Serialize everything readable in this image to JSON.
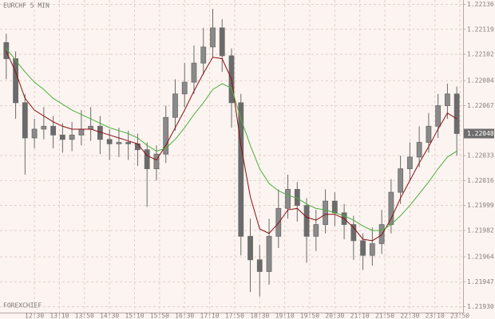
{
  "chart_data": {
    "type": "candlestick",
    "title": "EURCHF 5 MIN",
    "watermark": "FOREXCHIEF",
    "x": [
      705,
      720,
      735,
      750,
      765,
      780,
      795,
      810,
      825,
      840,
      855,
      870,
      885,
      900,
      915,
      930,
      945,
      960,
      975,
      990,
      1005,
      1020,
      1035,
      1050,
      1065,
      1080,
      1095,
      1110,
      1125,
      1140,
      1155,
      1170,
      1185,
      1200,
      1215,
      1230,
      1245,
      1260,
      1275,
      1290,
      1305,
      1320,
      1335,
      1350,
      1365,
      1380,
      1395,
      1410,
      1425
    ],
    "open": [
      1.2211,
      1.22099,
      1.22069,
      1.22045,
      1.22051,
      1.22053,
      1.22047,
      1.22044,
      1.22047,
      1.22051,
      1.22053,
      1.22044,
      1.22041,
      1.22042,
      1.22041,
      1.22037,
      1.22024,
      1.22034,
      1.22059,
      1.22075,
      1.22083,
      1.22096,
      1.22107,
      1.2212,
      1.22101,
      1.22069,
      1.21978,
      1.21962,
      1.21954,
      1.21978,
      1.21997,
      1.2201,
      1.21999,
      1.21978,
      1.21986,
      1.22002,
      1.21994,
      1.21986,
      1.21975,
      1.21965,
      1.21973,
      1.21986,
      1.22008,
      1.22024,
      1.22032,
      1.22042,
      1.22053,
      1.22067,
      1.22075
    ],
    "high": [
      1.22116,
      1.22104,
      1.22075,
      1.22058,
      1.22066,
      1.2206,
      1.22055,
      1.22056,
      1.22064,
      1.22066,
      1.2206,
      1.22051,
      1.22052,
      1.2205,
      1.22048,
      1.22042,
      1.2204,
      1.22067,
      1.22085,
      1.22096,
      1.22108,
      1.2212,
      1.22133,
      1.22126,
      1.22106,
      1.22075,
      1.2199,
      1.21972,
      1.2199,
      1.2201,
      1.2202,
      1.22015,
      1.22004,
      1.21996,
      1.2201,
      1.22008,
      1.22,
      1.21992,
      1.2198,
      1.21984,
      1.21996,
      1.22017,
      1.22033,
      1.22042,
      1.22053,
      1.22062,
      1.22075,
      1.22082,
      1.2208
    ],
    "low": [
      1.22085,
      1.22058,
      1.2202,
      1.22038,
      1.22044,
      1.22038,
      1.22035,
      1.22036,
      1.2204,
      1.22043,
      1.22034,
      1.2203,
      1.22032,
      1.2203,
      1.22026,
      1.21998,
      1.22016,
      1.22028,
      1.2205,
      1.22066,
      1.22075,
      1.22088,
      1.221,
      1.2209,
      1.22052,
      1.21965,
      1.2194,
      1.21937,
      1.21945,
      1.2197,
      1.2199,
      1.21988,
      1.2196,
      1.21968,
      1.2198,
      1.21985,
      1.21976,
      1.21962,
      1.21955,
      1.21958,
      1.21966,
      1.2198,
      1.22,
      1.22016,
      1.22025,
      1.22035,
      1.22045,
      1.22058,
      1.22033
    ],
    "close": [
      1.22099,
      1.22069,
      1.22045,
      1.22051,
      1.22053,
      1.22047,
      1.22044,
      1.22047,
      1.22051,
      1.22053,
      1.22044,
      1.22041,
      1.22042,
      1.22041,
      1.22037,
      1.22024,
      1.22034,
      1.22059,
      1.22075,
      1.22083,
      1.22096,
      1.22107,
      1.2212,
      1.22101,
      1.22069,
      1.21978,
      1.21962,
      1.21954,
      1.21978,
      1.21997,
      1.2201,
      1.21999,
      1.21978,
      1.21986,
      1.22002,
      1.21994,
      1.21986,
      1.21975,
      1.21965,
      1.21973,
      1.21986,
      1.22008,
      1.22024,
      1.22032,
      1.22042,
      1.22053,
      1.22067,
      1.22075,
      1.22048
    ],
    "candle_color": "#6b6b6b",
    "ma_lines": [
      {
        "color": "#8b0f14",
        "values": [
          1.22104,
          1.2209,
          1.22072,
          1.22064,
          1.2206,
          1.22056,
          1.22053,
          1.22051,
          1.22051,
          1.22051,
          1.22049,
          1.22047,
          1.22045,
          1.22043,
          1.22041,
          1.22033,
          1.2203,
          1.2204,
          1.22052,
          1.22064,
          1.22077,
          1.22089,
          1.221,
          1.22099,
          1.22085,
          1.2204,
          1.22005,
          1.21983,
          1.2198,
          1.21987,
          1.21996,
          1.21997,
          1.21991,
          1.21989,
          1.21993,
          1.21993,
          1.2199,
          1.21984,
          1.21976,
          1.21975,
          1.21979,
          1.2199,
          1.22004,
          1.22016,
          1.22028,
          1.22039,
          1.22051,
          1.22062,
          1.22058
        ]
      },
      {
        "color": "#4caf3e",
        "values": [
          1.22106,
          1.22098,
          1.2209,
          1.22083,
          1.22078,
          1.22072,
          1.22068,
          1.22064,
          1.22061,
          1.22058,
          1.22055,
          1.22052,
          1.2205,
          1.22048,
          1.22045,
          1.2204,
          1.22036,
          1.22038,
          1.22044,
          1.22052,
          1.22061,
          1.22069,
          1.22078,
          1.22082,
          1.22079,
          1.22058,
          1.2204,
          1.22024,
          1.22014,
          1.22009,
          1.22006,
          1.22004,
          1.22,
          1.21997,
          1.21996,
          1.21994,
          1.21992,
          1.21989,
          1.21985,
          1.21982,
          1.21982,
          1.21986,
          1.21992,
          1.21999,
          1.22007,
          1.22015,
          1.22024,
          1.22032,
          1.22036
        ]
      }
    ],
    "last_price": 1.22048,
    "xlim": [
      695,
      1435
    ],
    "ylim": [
      1.21926,
      1.22139
    ],
    "xticks": [
      {
        "value": 750,
        "label": "12:30"
      },
      {
        "value": 790,
        "label": "13:10"
      },
      {
        "value": 830,
        "label": "13:50"
      },
      {
        "value": 870,
        "label": "14:30"
      },
      {
        "value": 910,
        "label": "15:10"
      },
      {
        "value": 950,
        "label": "15:50"
      },
      {
        "value": 990,
        "label": "16:30"
      },
      {
        "value": 1030,
        "label": "17:10"
      },
      {
        "value": 1070,
        "label": "17:50"
      },
      {
        "value": 1110,
        "label": "18:30"
      },
      {
        "value": 1150,
        "label": "19:10"
      },
      {
        "value": 1190,
        "label": "19:50"
      },
      {
        "value": 1230,
        "label": "20:30"
      },
      {
        "value": 1270,
        "label": "21:10"
      },
      {
        "value": 1310,
        "label": "21:50"
      },
      {
        "value": 1350,
        "label": "22:30"
      },
      {
        "value": 1390,
        "label": "23:10"
      },
      {
        "value": 1430,
        "label": "23:50"
      }
    ],
    "yticks": [
      1.22136,
      1.22119,
      1.22102,
      1.22084,
      1.22067,
      1.22033,
      1.22016,
      1.21999,
      1.21982,
      1.21964,
      1.21947,
      {
        "value": 1.2193,
        "label": "1.21930"
      }
    ],
    "grid": true
  }
}
